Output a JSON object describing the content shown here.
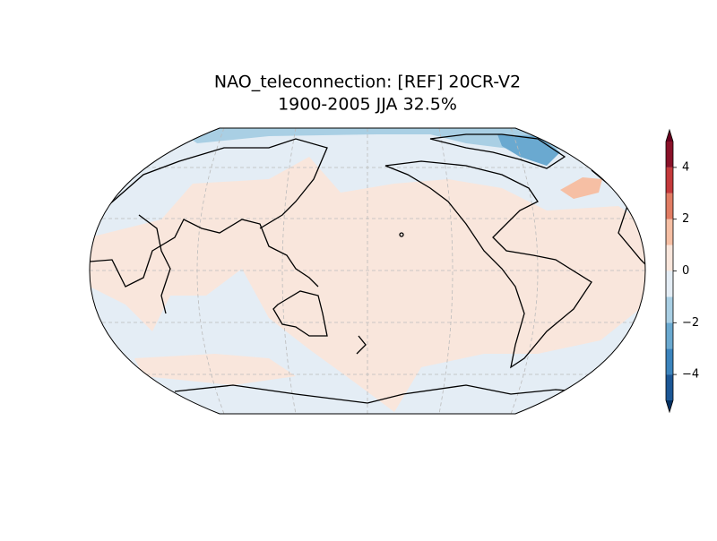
{
  "title": "NAO_teleconnection: [REF] 20CR-V2",
  "subtitle": "1900-2005 JJA 32.5%",
  "colorbar": {
    "levels": [
      -5,
      -4,
      -3,
      -2,
      -1,
      0,
      1,
      2,
      3,
      4,
      5
    ],
    "colors": [
      "#1c5796",
      "#3b84bd",
      "#6aa9d0",
      "#a9cfe4",
      "#e4edf5",
      "#f9e6dc",
      "#f6bfa4",
      "#e17c63",
      "#c4393b",
      "#8a1129"
    ],
    "under_color": "#053061",
    "over_color": "#67001f",
    "ticks": [
      {
        "value": -4,
        "label": "−4"
      },
      {
        "value": -2,
        "label": "−2"
      },
      0,
      2,
      4
    ]
  }
}
